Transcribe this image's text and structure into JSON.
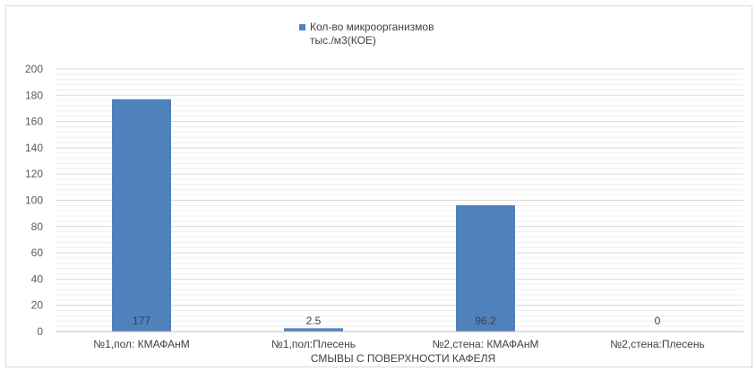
{
  "chart_data": {
    "type": "bar",
    "categories": [
      "№1,пол: КМАФАнМ",
      "№1,пол:Плесень",
      "№2,стена: КМАФАнМ",
      "№2,стена:Плесень"
    ],
    "series": [
      {
        "name_lines": [
          "Кол-во микроорганизмов",
          "тыс./м3(КОЕ)"
        ],
        "values": [
          177,
          2.5,
          96.2,
          0
        ],
        "data_labels": [
          "177",
          "2.5",
          "96.2",
          "0"
        ],
        "color": "#4f81bd"
      }
    ],
    "xlabel": "СМЫВЫ С ПОВЕРХНОСТИ КАФЕЛЯ",
    "ylabel": "",
    "ylim": [
      0,
      200
    ],
    "yticks": [
      "0",
      "20",
      "40",
      "60",
      "80",
      "100",
      "120",
      "140",
      "160",
      "180",
      "200"
    ],
    "grid": true,
    "minor_grid": true,
    "legend_position": "top-center"
  }
}
